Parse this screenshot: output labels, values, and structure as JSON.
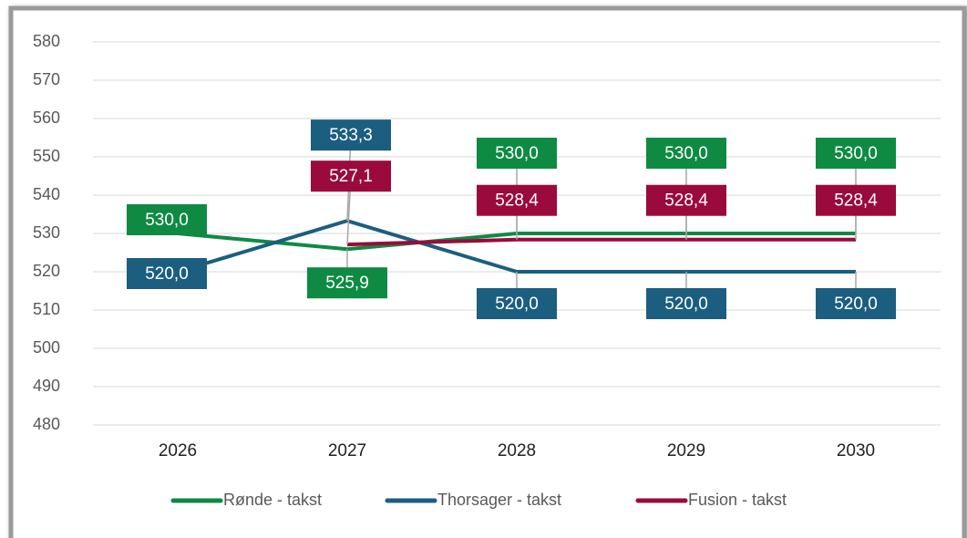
{
  "chart_data": {
    "type": "line",
    "categories": [
      "2026",
      "2027",
      "2028",
      "2029",
      "2030"
    ],
    "series": [
      {
        "name": "Rønde - takst",
        "color": "#0e8a43",
        "values": [
          530.0,
          525.9,
          530.0,
          530.0,
          530.0
        ],
        "value_labels": [
          "530,0",
          "525,9",
          "530,0",
          "530,0",
          "530,0"
        ]
      },
      {
        "name": "Thorsager - takst",
        "color": "#1b5e80",
        "values": [
          520.0,
          533.3,
          520.0,
          520.0,
          520.0
        ],
        "value_labels": [
          "520,0",
          "533,3",
          "520,0",
          "520,0",
          "520,0"
        ]
      },
      {
        "name": "Fusion - takst",
        "color": "#9a0a3c",
        "values": [
          null,
          527.1,
          528.4,
          528.4,
          528.4
        ],
        "value_labels": [
          null,
          "527,1",
          "528,4",
          "528,4",
          "528,4"
        ]
      }
    ],
    "ylim": [
      480,
      580
    ],
    "yticks": [
      480,
      490,
      500,
      510,
      520,
      530,
      540,
      550,
      560,
      570,
      580
    ],
    "grid": true,
    "legend": "bottom"
  }
}
